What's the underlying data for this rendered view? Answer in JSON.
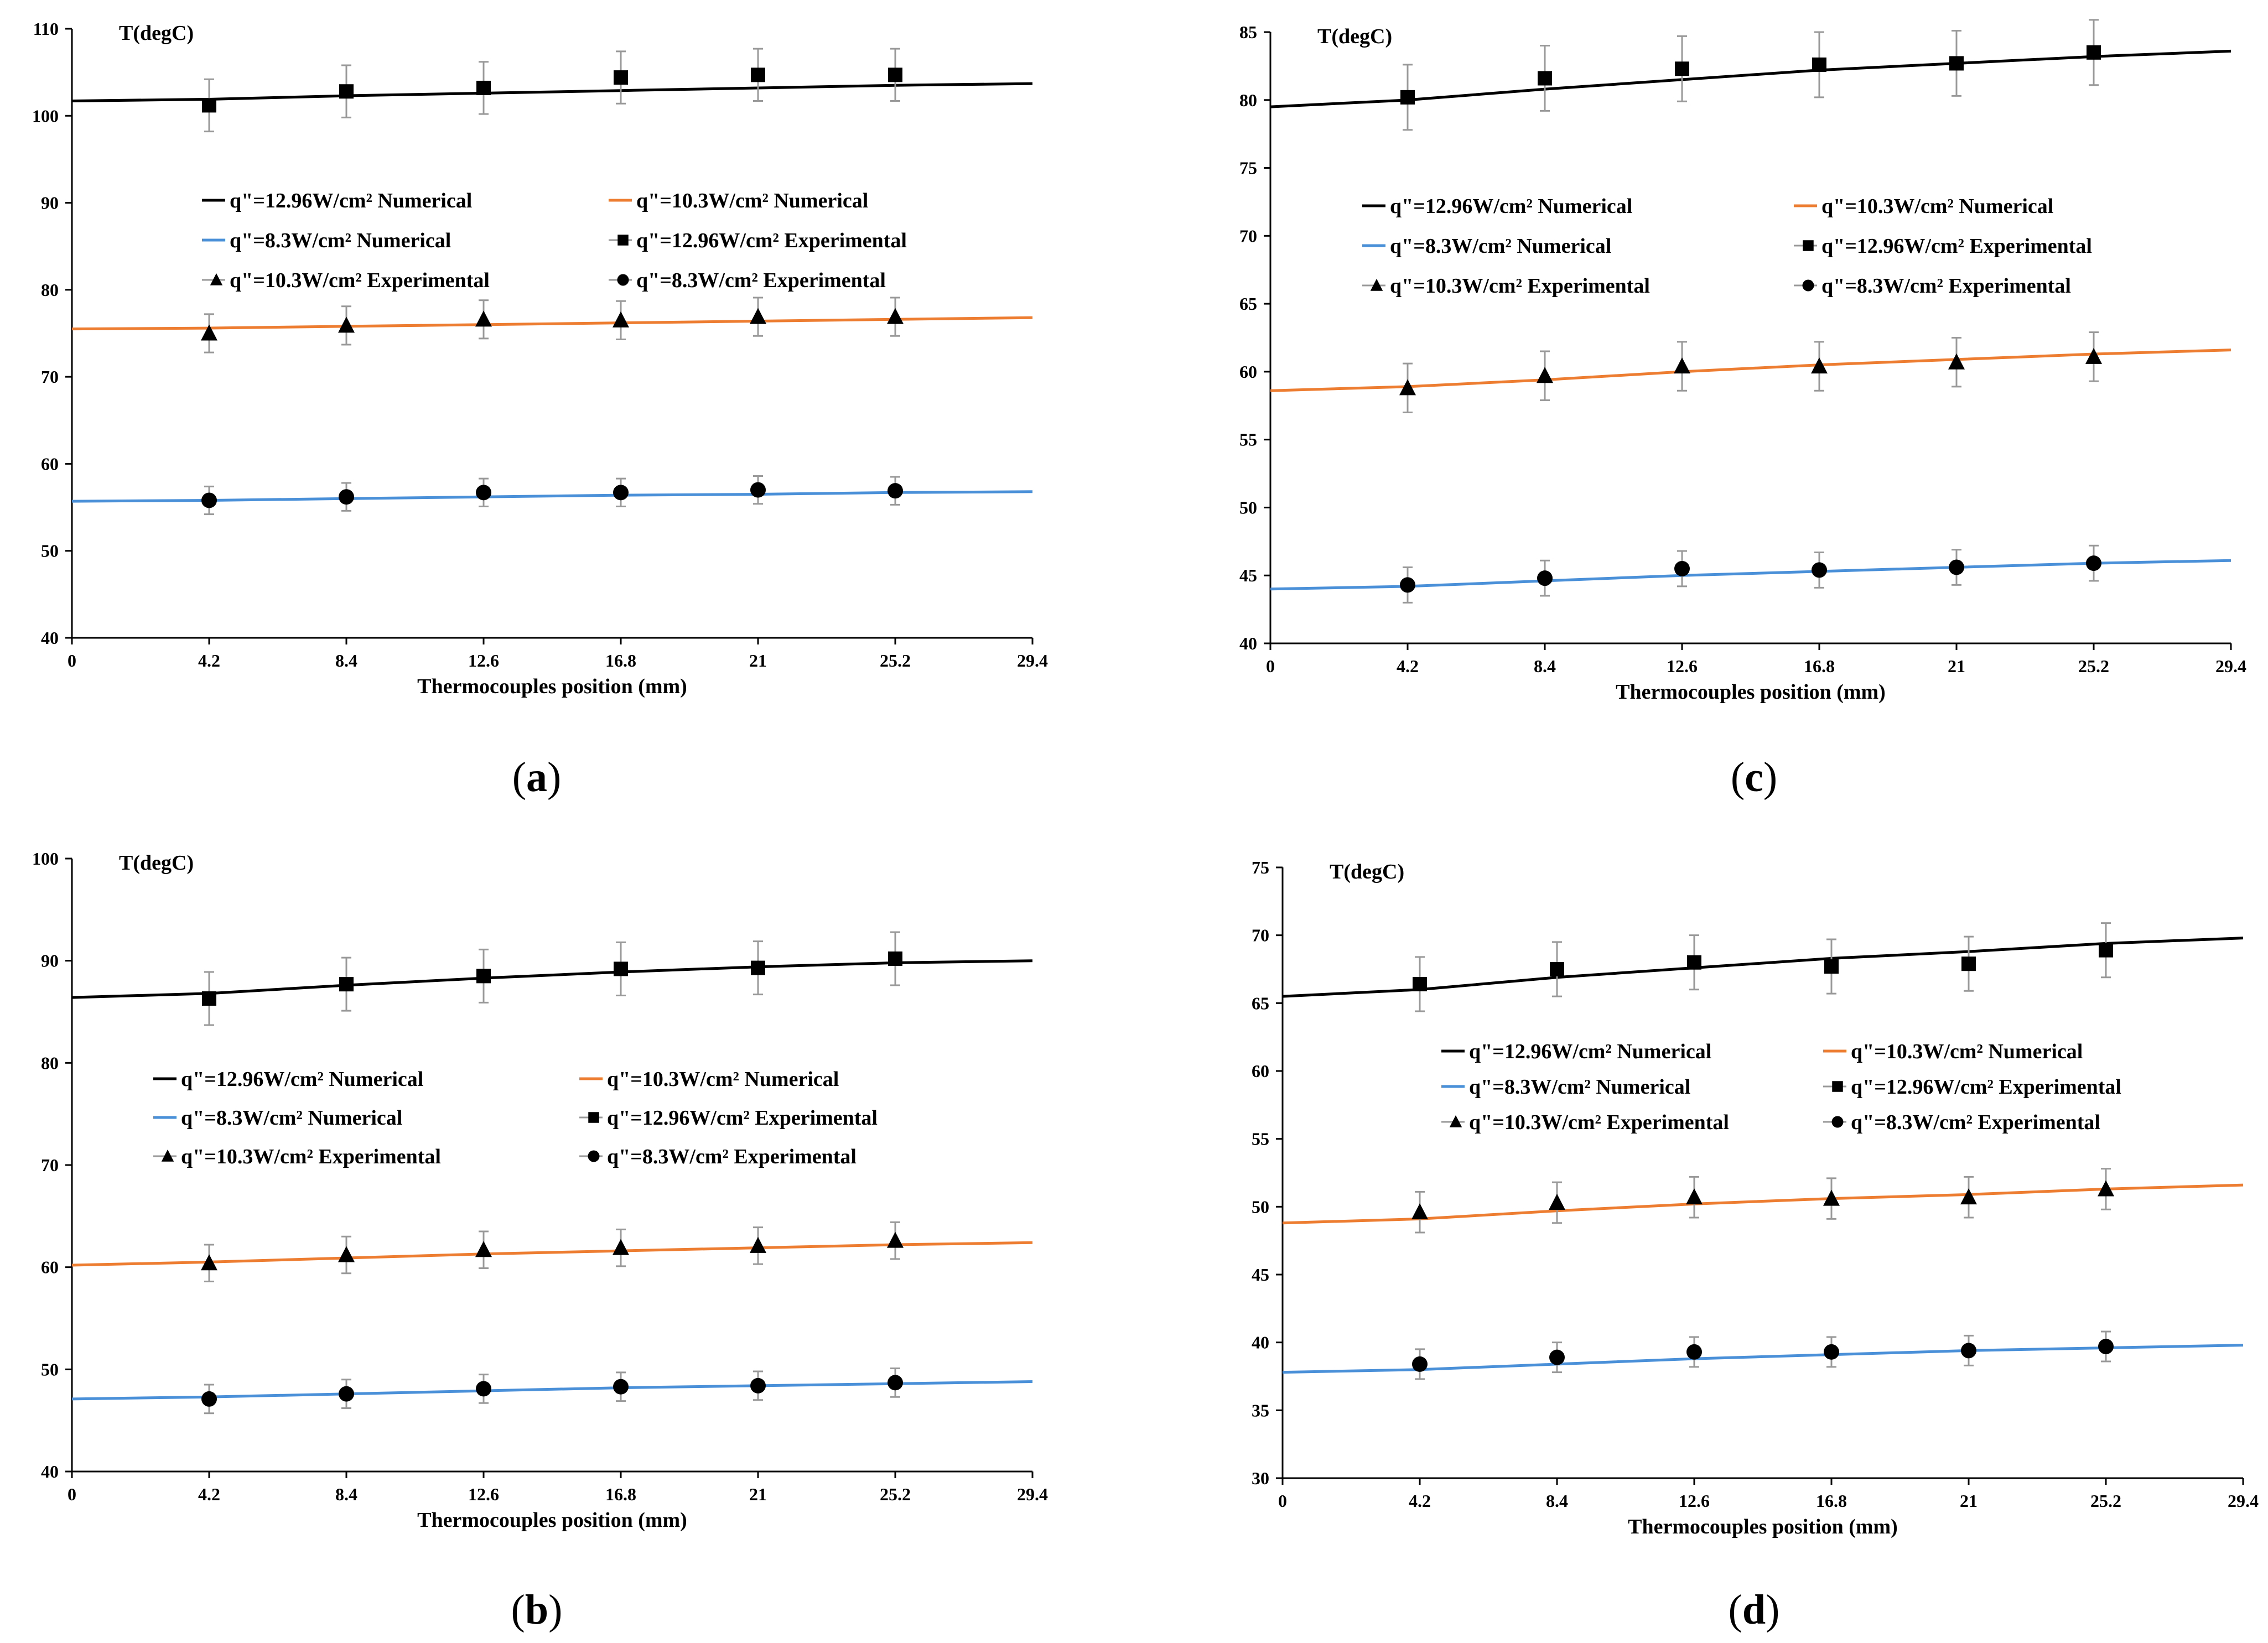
{
  "chart_data": [
    {
      "panel": "a",
      "type": "line",
      "ylabel": "T(degC)",
      "xlabel": "Thermocouples position (mm)",
      "ylim": [
        40,
        110
      ],
      "yticks": [
        40,
        50,
        60,
        70,
        80,
        90,
        100,
        110
      ],
      "xlim": [
        0,
        29.4
      ],
      "xticks": [
        "0",
        "4.2",
        "8.4",
        "12.6",
        "16.8",
        "21",
        "25.2",
        "29.4"
      ],
      "series": [
        {
          "name": "q\"=12.96W/cm² Numerical",
          "kind": "line",
          "color": "#000000",
          "x": [
            0,
            4.2,
            8.4,
            12.6,
            16.8,
            21,
            25.2,
            29.4
          ],
          "y": [
            101.7,
            101.9,
            102.3,
            102.6,
            102.9,
            103.2,
            103.5,
            103.7
          ]
        },
        {
          "name": "q\"=10.3W/cm² Numerical",
          "kind": "line",
          "color": "#ED7D31",
          "x": [
            0,
            4.2,
            8.4,
            12.6,
            16.8,
            21,
            25.2,
            29.4
          ],
          "y": [
            75.5,
            75.6,
            75.8,
            76.0,
            76.2,
            76.4,
            76.6,
            76.8
          ]
        },
        {
          "name": "q\"=8.3W/cm² Numerical",
          "kind": "line",
          "color": "#4A90D9",
          "x": [
            0,
            4.2,
            8.4,
            12.6,
            16.8,
            21,
            25.2,
            29.4
          ],
          "y": [
            55.7,
            55.8,
            56.0,
            56.2,
            56.4,
            56.5,
            56.7,
            56.8
          ]
        },
        {
          "name": "q\"=12.96W/cm² Experimental",
          "kind": "marker",
          "marker": "square",
          "x": [
            4.2,
            8.4,
            12.6,
            16.8,
            21,
            25.2
          ],
          "y": [
            101.2,
            102.8,
            103.2,
            104.4,
            104.7,
            104.7
          ],
          "err": 3.0
        },
        {
          "name": "q\"=10.3W/cm² Experimental",
          "kind": "marker",
          "marker": "triangle",
          "x": [
            4.2,
            8.4,
            12.6,
            16.8,
            21,
            25.2
          ],
          "y": [
            75.0,
            75.9,
            76.6,
            76.5,
            76.9,
            76.9
          ],
          "err": 2.2
        },
        {
          "name": "q\"=8.3W/cm² Experimental",
          "kind": "marker",
          "marker": "circle",
          "x": [
            4.2,
            8.4,
            12.6,
            16.8,
            21,
            25.2
          ],
          "y": [
            55.8,
            56.2,
            56.7,
            56.7,
            57.0,
            56.9
          ],
          "err": 1.6
        }
      ]
    },
    {
      "panel": "b",
      "type": "line",
      "ylabel": "T(degC)",
      "xlabel": "Thermocouples position (mm)",
      "ylim": [
        40,
        100
      ],
      "yticks": [
        40,
        50,
        60,
        70,
        80,
        90,
        100
      ],
      "xlim": [
        0,
        29.4
      ],
      "xticks": [
        "0",
        "4.2",
        "8.4",
        "12.6",
        "16.8",
        "21",
        "25.2",
        "29.4"
      ],
      "series": [
        {
          "name": "q\"=12.96W/cm² Numerical",
          "kind": "line",
          "color": "#000000",
          "x": [
            0,
            4.2,
            8.4,
            12.6,
            16.8,
            21,
            25.2,
            29.4
          ],
          "y": [
            86.4,
            86.8,
            87.6,
            88.3,
            88.9,
            89.4,
            89.8,
            90.0
          ]
        },
        {
          "name": "q\"=10.3W/cm² Numerical",
          "kind": "line",
          "color": "#ED7D31",
          "x": [
            0,
            4.2,
            8.4,
            12.6,
            16.8,
            21,
            25.2,
            29.4
          ],
          "y": [
            60.2,
            60.5,
            60.9,
            61.3,
            61.6,
            61.9,
            62.2,
            62.4
          ]
        },
        {
          "name": "q\"=8.3W/cm² Numerical",
          "kind": "line",
          "color": "#4A90D9",
          "x": [
            0,
            4.2,
            8.4,
            12.6,
            16.8,
            21,
            25.2,
            29.4
          ],
          "y": [
            47.1,
            47.3,
            47.6,
            47.9,
            48.2,
            48.4,
            48.6,
            48.8
          ]
        },
        {
          "name": "q\"=12.96W/cm² Experimental",
          "kind": "marker",
          "marker": "square",
          "x": [
            4.2,
            8.4,
            12.6,
            16.8,
            21,
            25.2
          ],
          "y": [
            86.3,
            87.7,
            88.5,
            89.2,
            89.3,
            90.2
          ],
          "err": 2.6
        },
        {
          "name": "q\"=10.3W/cm² Experimental",
          "kind": "marker",
          "marker": "triangle",
          "x": [
            4.2,
            8.4,
            12.6,
            16.8,
            21,
            25.2
          ],
          "y": [
            60.4,
            61.2,
            61.7,
            61.9,
            62.1,
            62.6
          ],
          "err": 1.8
        },
        {
          "name": "q\"=8.3W/cm² Experimental",
          "kind": "marker",
          "marker": "circle",
          "x": [
            4.2,
            8.4,
            12.6,
            16.8,
            21,
            25.2
          ],
          "y": [
            47.1,
            47.6,
            48.1,
            48.3,
            48.4,
            48.7
          ],
          "err": 1.4
        }
      ]
    },
    {
      "panel": "c",
      "type": "line",
      "ylabel": "T(degC)",
      "xlabel": "Thermocouples position (mm)",
      "ylim": [
        40,
        85
      ],
      "yticks": [
        40,
        45,
        50,
        55,
        60,
        65,
        70,
        75,
        80,
        85
      ],
      "xlim": [
        0,
        29.4
      ],
      "xticks": [
        "0",
        "4.2",
        "8.4",
        "12.6",
        "16.8",
        "21",
        "25.2",
        "29.4"
      ],
      "series": [
        {
          "name": "q\"=12.96W/cm² Numerical",
          "kind": "line",
          "color": "#000000",
          "x": [
            0,
            4.2,
            8.4,
            12.6,
            16.8,
            21,
            25.2,
            29.4
          ],
          "y": [
            79.5,
            80.0,
            80.8,
            81.5,
            82.2,
            82.7,
            83.2,
            83.6
          ]
        },
        {
          "name": "q\"=10.3W/cm² Numerical",
          "kind": "line",
          "color": "#ED7D31",
          "x": [
            0,
            4.2,
            8.4,
            12.6,
            16.8,
            21,
            25.2,
            29.4
          ],
          "y": [
            58.6,
            58.9,
            59.4,
            60.0,
            60.5,
            60.9,
            61.3,
            61.6
          ]
        },
        {
          "name": "q\"=8.3W/cm² Numerical",
          "kind": "line",
          "color": "#4A90D9",
          "x": [
            0,
            4.2,
            8.4,
            12.6,
            16.8,
            21,
            25.2,
            29.4
          ],
          "y": [
            44.0,
            44.2,
            44.6,
            45.0,
            45.3,
            45.6,
            45.9,
            46.1
          ]
        },
        {
          "name": "q\"=12.96W/cm² Experimental",
          "kind": "marker",
          "marker": "square",
          "x": [
            4.2,
            8.4,
            12.6,
            16.8,
            21,
            25.2
          ],
          "y": [
            80.2,
            81.6,
            82.3,
            82.6,
            82.7,
            83.5
          ],
          "err": 2.4
        },
        {
          "name": "q\"=10.3W/cm² Experimental",
          "kind": "marker",
          "marker": "triangle",
          "x": [
            4.2,
            8.4,
            12.6,
            16.8,
            21,
            25.2
          ],
          "y": [
            58.8,
            59.7,
            60.4,
            60.4,
            60.7,
            61.1
          ],
          "err": 1.8
        },
        {
          "name": "q\"=8.3W/cm² Experimental",
          "kind": "marker",
          "marker": "circle",
          "x": [
            4.2,
            8.4,
            12.6,
            16.8,
            21,
            25.2
          ],
          "y": [
            44.3,
            44.8,
            45.5,
            45.4,
            45.6,
            45.9
          ],
          "err": 1.3
        }
      ]
    },
    {
      "panel": "d",
      "type": "line",
      "ylabel": "T(degC)",
      "xlabel": "Thermocouples position (mm)",
      "ylim": [
        30,
        75
      ],
      "yticks": [
        30,
        35,
        40,
        45,
        50,
        55,
        60,
        65,
        70,
        75
      ],
      "xlim": [
        0,
        29.4
      ],
      "xticks": [
        "0",
        "4.2",
        "8.4",
        "12.6",
        "16.8",
        "21",
        "25.2",
        "29.4"
      ],
      "series": [
        {
          "name": "q\"=12.96W/cm² Numerical",
          "kind": "line",
          "color": "#000000",
          "x": [
            0,
            4.2,
            8.4,
            12.6,
            16.8,
            21,
            25.2,
            29.4
          ],
          "y": [
            65.5,
            66.0,
            66.9,
            67.6,
            68.3,
            68.8,
            69.4,
            69.8
          ]
        },
        {
          "name": "q\"=10.3W/cm² Numerical",
          "kind": "line",
          "color": "#ED7D31",
          "x": [
            0,
            4.2,
            8.4,
            12.6,
            16.8,
            21,
            25.2,
            29.4
          ],
          "y": [
            48.8,
            49.1,
            49.7,
            50.2,
            50.6,
            50.9,
            51.3,
            51.6
          ]
        },
        {
          "name": "q\"=8.3W/cm² Numerical",
          "kind": "line",
          "color": "#4A90D9",
          "x": [
            0,
            4.2,
            8.4,
            12.6,
            16.8,
            21,
            25.2,
            29.4
          ],
          "y": [
            37.8,
            38.0,
            38.4,
            38.8,
            39.1,
            39.4,
            39.6,
            39.8
          ]
        },
        {
          "name": "q\"=12.96W/cm² Experimental",
          "kind": "marker",
          "marker": "square",
          "x": [
            4.2,
            8.4,
            12.6,
            16.8,
            21,
            25.2
          ],
          "y": [
            66.4,
            67.5,
            68.0,
            67.7,
            67.9,
            68.9
          ],
          "err": 2.0
        },
        {
          "name": "q\"=10.3W/cm² Experimental",
          "kind": "marker",
          "marker": "triangle",
          "x": [
            4.2,
            8.4,
            12.6,
            16.8,
            21,
            25.2
          ],
          "y": [
            49.6,
            50.3,
            50.7,
            50.6,
            50.7,
            51.3
          ],
          "err": 1.5
        },
        {
          "name": "q\"=8.3W/cm² Experimental",
          "kind": "marker",
          "marker": "circle",
          "x": [
            4.2,
            8.4,
            12.6,
            16.8,
            21,
            25.2
          ],
          "y": [
            38.4,
            38.9,
            39.3,
            39.3,
            39.4,
            39.7
          ],
          "err": 1.1
        }
      ]
    }
  ],
  "legend": {
    "entries": [
      {
        "label": "q\"=12.96W/cm² Numerical",
        "icon": "black-line"
      },
      {
        "label": "q\"=10.3W/cm² Numerical",
        "icon": "orange-line"
      },
      {
        "label": "q\"=8.3W/cm² Numerical",
        "icon": "blue-line"
      },
      {
        "label": "q\"=12.96W/cm² Experimental",
        "icon": "square-marker"
      },
      {
        "label": "q\"=10.3W/cm² Experimental",
        "icon": "triangle-marker"
      },
      {
        "label": "q\"=8.3W/cm² Experimental",
        "icon": "circle-marker"
      }
    ]
  },
  "panel_labels": [
    "a",
    "b",
    "c",
    "d"
  ],
  "colors": {
    "black": "#000000",
    "orange": "#ED7D31",
    "blue": "#4A90D9",
    "error_bar": "#999999",
    "axis": "#000000"
  }
}
